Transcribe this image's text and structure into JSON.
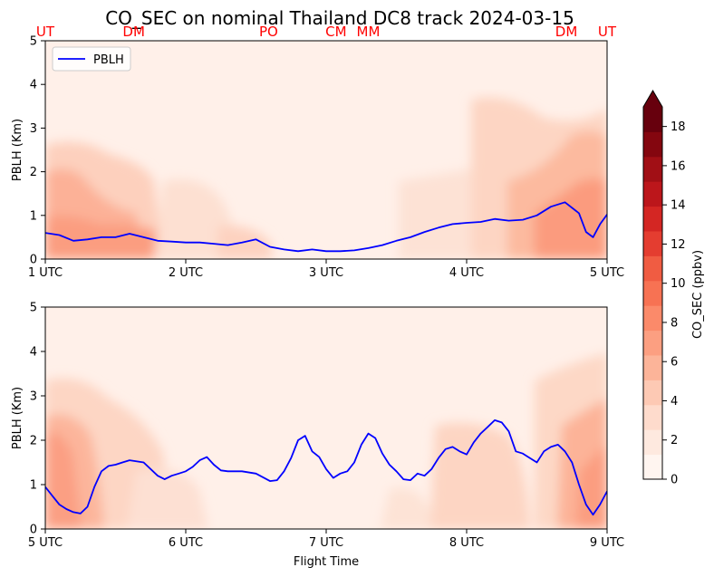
{
  "chart_data": [
    {
      "type": "line",
      "title": "CO_SEC on nominal Thailand DC8 track 2024-03-15",
      "ylabel": "PBLH (Km)",
      "xlabel": "",
      "x_range_hours": [
        1,
        5
      ],
      "ylim": [
        0,
        5
      ],
      "xticks": [
        1,
        2,
        3,
        4,
        5
      ],
      "xtick_labels": [
        "1 UTC",
        "2 UTC",
        "3 UTC",
        "4 UTC",
        "5 UTC"
      ],
      "yticks": [
        0,
        1,
        2,
        3,
        4,
        5
      ],
      "legend": {
        "entries": [
          "PBLH"
        ],
        "placement": "upper-left"
      },
      "background": "filled contour of CO_SEC (ppbv) over time and altitude",
      "site_labels": [
        {
          "text": "UT",
          "x": 1.0
        },
        {
          "text": "DM",
          "x": 1.63
        },
        {
          "text": "PO",
          "x": 2.59
        },
        {
          "text": "CM",
          "x": 3.07
        },
        {
          "text": "MM",
          "x": 3.3
        },
        {
          "text": "DM",
          "x": 4.71
        },
        {
          "text": "UT",
          "x": 5.0
        }
      ],
      "series": [
        {
          "name": "PBLH",
          "color": "#0000ff",
          "x": [
            1.0,
            1.1,
            1.2,
            1.3,
            1.4,
            1.5,
            1.6,
            1.7,
            1.8,
            1.9,
            2.0,
            2.1,
            2.2,
            2.3,
            2.4,
            2.5,
            2.6,
            2.7,
            2.8,
            2.9,
            3.0,
            3.1,
            3.2,
            3.3,
            3.4,
            3.5,
            3.6,
            3.7,
            3.8,
            3.9,
            4.0,
            4.1,
            4.2,
            4.3,
            4.4,
            4.5,
            4.6,
            4.7,
            4.8,
            4.85,
            4.9,
            4.95,
            5.0
          ],
          "y": [
            0.6,
            0.55,
            0.42,
            0.45,
            0.5,
            0.5,
            0.58,
            0.5,
            0.42,
            0.4,
            0.38,
            0.38,
            0.35,
            0.32,
            0.38,
            0.45,
            0.28,
            0.22,
            0.18,
            0.22,
            0.18,
            0.18,
            0.2,
            0.25,
            0.32,
            0.42,
            0.5,
            0.62,
            0.72,
            0.8,
            0.83,
            0.85,
            0.92,
            0.88,
            0.9,
            1.0,
            1.2,
            1.3,
            1.05,
            0.62,
            0.5,
            0.8,
            1.02
          ]
        }
      ]
    },
    {
      "type": "line",
      "title": "",
      "ylabel": "PBLH (Km)",
      "xlabel": "Flight Time",
      "x_range_hours": [
        5,
        9
      ],
      "ylim": [
        0,
        5
      ],
      "xticks": [
        5,
        6,
        7,
        8,
        9
      ],
      "xtick_labels": [
        "5 UTC",
        "6 UTC",
        "7 UTC",
        "8 UTC",
        "9 UTC"
      ],
      "yticks": [
        0,
        1,
        2,
        3,
        4,
        5
      ],
      "background": "filled contour of CO_SEC (ppbv) over time and altitude",
      "series": [
        {
          "name": "PBLH",
          "color": "#0000ff",
          "x": [
            5.0,
            5.05,
            5.1,
            5.15,
            5.2,
            5.25,
            5.3,
            5.35,
            5.4,
            5.45,
            5.5,
            5.55,
            5.6,
            5.7,
            5.8,
            5.85,
            5.9,
            5.95,
            6.0,
            6.05,
            6.1,
            6.15,
            6.2,
            6.25,
            6.3,
            6.4,
            6.5,
            6.6,
            6.65,
            6.7,
            6.75,
            6.8,
            6.85,
            6.9,
            6.95,
            7.0,
            7.05,
            7.1,
            7.15,
            7.2,
            7.25,
            7.3,
            7.35,
            7.4,
            7.45,
            7.5,
            7.55,
            7.6,
            7.65,
            7.7,
            7.75,
            7.8,
            7.85,
            7.9,
            7.95,
            8.0,
            8.05,
            8.1,
            8.15,
            8.2,
            8.25,
            8.3,
            8.35,
            8.4,
            8.45,
            8.5,
            8.55,
            8.6,
            8.65,
            8.7,
            8.75,
            8.8,
            8.85,
            8.9,
            8.95,
            9.0
          ],
          "y": [
            0.95,
            0.75,
            0.55,
            0.45,
            0.38,
            0.35,
            0.5,
            0.95,
            1.3,
            1.42,
            1.45,
            1.5,
            1.55,
            1.5,
            1.2,
            1.12,
            1.2,
            1.25,
            1.3,
            1.4,
            1.55,
            1.62,
            1.45,
            1.32,
            1.3,
            1.3,
            1.25,
            1.08,
            1.1,
            1.3,
            1.6,
            2.0,
            2.1,
            1.75,
            1.62,
            1.35,
            1.15,
            1.25,
            1.3,
            1.5,
            1.9,
            2.15,
            2.05,
            1.7,
            1.45,
            1.3,
            1.12,
            1.1,
            1.25,
            1.2,
            1.35,
            1.6,
            1.8,
            1.85,
            1.75,
            1.68,
            1.95,
            2.15,
            2.3,
            2.45,
            2.4,
            2.2,
            1.75,
            1.7,
            1.6,
            1.5,
            1.75,
            1.85,
            1.9,
            1.75,
            1.5,
            1.0,
            0.55,
            0.32,
            0.55,
            0.85
          ]
        }
      ]
    }
  ],
  "colorbar": {
    "label": "CO_SEC (ppbv)",
    "ticks": [
      0,
      2,
      4,
      6,
      8,
      10,
      12,
      14,
      16,
      18
    ],
    "range": [
      0,
      19
    ],
    "extend": "max",
    "colors": [
      "#fff5f0",
      "#fee9df",
      "#fedbcc",
      "#fdc9b4",
      "#fcb499",
      "#fc9f81",
      "#fb8a6a",
      "#f77253",
      "#f05c42",
      "#e43d30",
      "#d42623",
      "#bc161b",
      "#a10f15",
      "#84060f",
      "#67000d"
    ]
  }
}
